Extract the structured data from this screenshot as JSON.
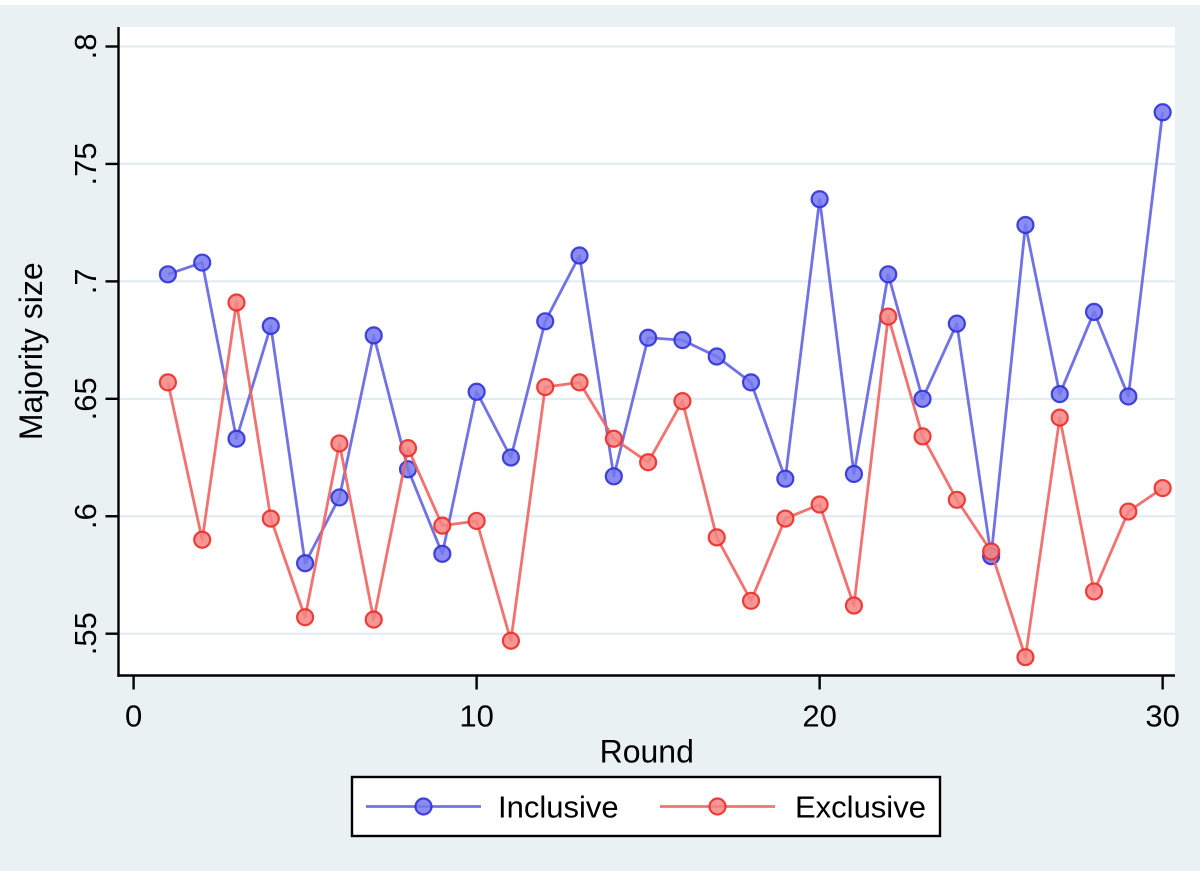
{
  "figure": {
    "background_color": "#EAF1F3",
    "top_edge_color": "#FFFFFF",
    "plot_background": "#FFFFFF",
    "gridline_color": "#DFEBF1",
    "axis_color": "#000000",
    "text_color": "#000000"
  },
  "chart_data": {
    "type": "line",
    "title": "",
    "xlabel": "Round",
    "ylabel": "Majority size",
    "x": [
      1,
      2,
      3,
      4,
      5,
      6,
      7,
      8,
      9,
      10,
      11,
      12,
      13,
      14,
      15,
      16,
      17,
      18,
      19,
      20,
      21,
      22,
      23,
      24,
      25,
      26,
      27,
      28,
      29,
      30
    ],
    "series": [
      {
        "name": "Inclusive",
        "line_color": "#6163E3",
        "marker_fill": "#7678EF",
        "marker_edge": "#2F32D8",
        "values": [
          0.703,
          0.708,
          0.633,
          0.681,
          0.58,
          0.608,
          0.677,
          0.62,
          0.584,
          0.653,
          0.625,
          0.683,
          0.711,
          0.617,
          0.676,
          0.675,
          0.668,
          0.657,
          0.616,
          0.735,
          0.618,
          0.703,
          0.65,
          0.682,
          0.583,
          0.724,
          0.652,
          0.687,
          0.651,
          0.772
        ]
      },
      {
        "name": "Exclusive",
        "line_color": "#F16360",
        "marker_fill": "#F48582",
        "marker_edge": "#ED2C28",
        "values": [
          0.657,
          0.59,
          0.691,
          0.599,
          0.557,
          0.631,
          0.556,
          0.629,
          0.596,
          0.598,
          0.547,
          0.655,
          0.657,
          0.633,
          0.623,
          0.649,
          0.591,
          0.564,
          0.599,
          0.605,
          0.562,
          0.685,
          0.634,
          0.607,
          0.585,
          0.54,
          0.642,
          0.568,
          0.602,
          0.612
        ]
      }
    ],
    "y_ticks": {
      "labels": [
        ".55",
        ".6",
        ".65",
        ".7",
        ".75",
        ".8"
      ],
      "values": [
        0.55,
        0.6,
        0.65,
        0.7,
        0.75,
        0.8
      ]
    },
    "x_ticks": {
      "labels": [
        "0",
        "10",
        "20",
        "30"
      ],
      "values": [
        0,
        10,
        20,
        30
      ]
    },
    "ylim": [
      0.5322,
      0.8083
    ],
    "xlim": [
      -0.44,
      30.36
    ],
    "grid": "horizontal",
    "legend_position": "bottom-center"
  },
  "legend": {
    "items": [
      {
        "label": "Inclusive"
      },
      {
        "label": "Exclusive"
      }
    ]
  }
}
